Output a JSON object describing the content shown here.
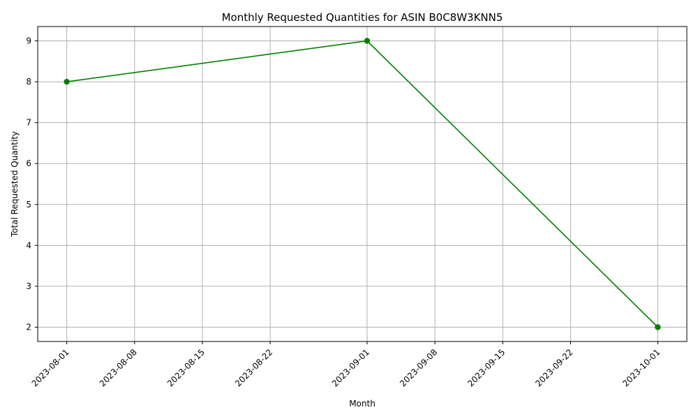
{
  "chart_data": {
    "type": "line",
    "title": "Monthly Requested Quantities for ASIN B0C8W3KNN5",
    "xlabel": "Month",
    "ylabel": "Total Requested Quantity",
    "x": [
      "2023-08-01",
      "2023-09-01",
      "2023-10-01"
    ],
    "series": [
      {
        "values": [
          8,
          9,
          2
        ],
        "color": "#008000",
        "marker": "circle"
      }
    ],
    "x_ticks": [
      "2023-08-01",
      "2023-08-08",
      "2023-08-15",
      "2023-08-22",
      "2023-09-01",
      "2023-09-08",
      "2023-09-15",
      "2023-09-22",
      "2023-10-01"
    ],
    "y_ticks": [
      2,
      3,
      4,
      5,
      6,
      7,
      8,
      9
    ],
    "xlim": [
      "2023-07-29",
      "2023-10-04"
    ],
    "ylim": [
      1.65,
      9.35
    ],
    "grid": true,
    "x_tick_rotation": 45
  }
}
